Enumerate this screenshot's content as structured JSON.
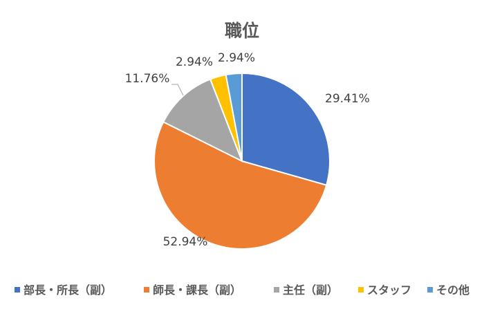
{
  "chart_data": {
    "type": "pie",
    "title": "職位",
    "categories": [
      "部長・所長（副）",
      "師長・課長（副）",
      "主任（副）",
      "スタッフ",
      "その他"
    ],
    "values": [
      29.41,
      52.94,
      11.76,
      2.94,
      2.94
    ],
    "labels": [
      "29.41%",
      "52.94%",
      "11.76%",
      "2.94%",
      "2.94%"
    ],
    "colors": [
      "#4472C4",
      "#ED7D31",
      "#A5A5A5",
      "#FFC000",
      "#5B9BD5"
    ],
    "start_angle_deg": 0,
    "direction": "clockwise",
    "legend_position": "bottom"
  }
}
